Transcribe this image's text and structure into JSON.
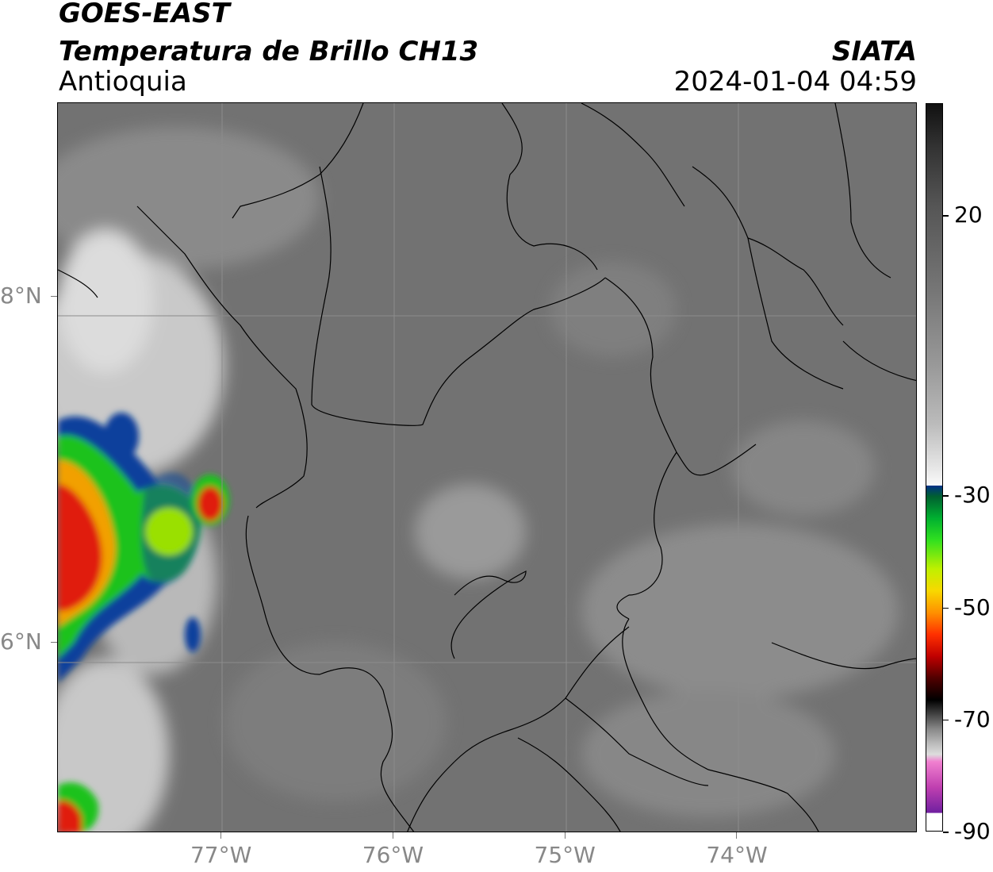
{
  "header": {
    "title_line1": "GOES-EAST",
    "title_line2": "Temperatura de Brillo CH13",
    "region": "Antioquia",
    "agency": "SIATA",
    "timestamp": "2024-01-04 04:59"
  },
  "map": {
    "lon_range": [
      -77.95,
      -72.95
    ],
    "lat_range": [
      4.9,
      9.12
    ],
    "x_ticks": [
      {
        "lon": -77,
        "label": "77°W"
      },
      {
        "lon": -76,
        "label": "76°W"
      },
      {
        "lon": -75,
        "label": "75°W"
      },
      {
        "lon": -74,
        "label": "74°W"
      }
    ],
    "y_ticks": [
      {
        "lat": 8,
        "label": "8°N"
      },
      {
        "lat": 6,
        "label": "6°N"
      }
    ],
    "colors": {
      "background_gray": "#6f6f6f",
      "light_cloud": "#bdbdbd",
      "cold_cloud_blue": "#0a3f9c",
      "cold_cloud_green": "#1fc21f",
      "cold_cloud_yellow": "#f2e600",
      "cold_cloud_red": "#e01a10"
    }
  },
  "colorbar": {
    "range": [
      -90,
      40
    ],
    "ticks": [
      {
        "value": 20,
        "label": "20"
      },
      {
        "value": -30,
        "label": "-30"
      },
      {
        "value": -50,
        "label": "-50"
      },
      {
        "value": -70,
        "label": "-70"
      },
      {
        "value": -90,
        "label": "-90"
      }
    ]
  }
}
